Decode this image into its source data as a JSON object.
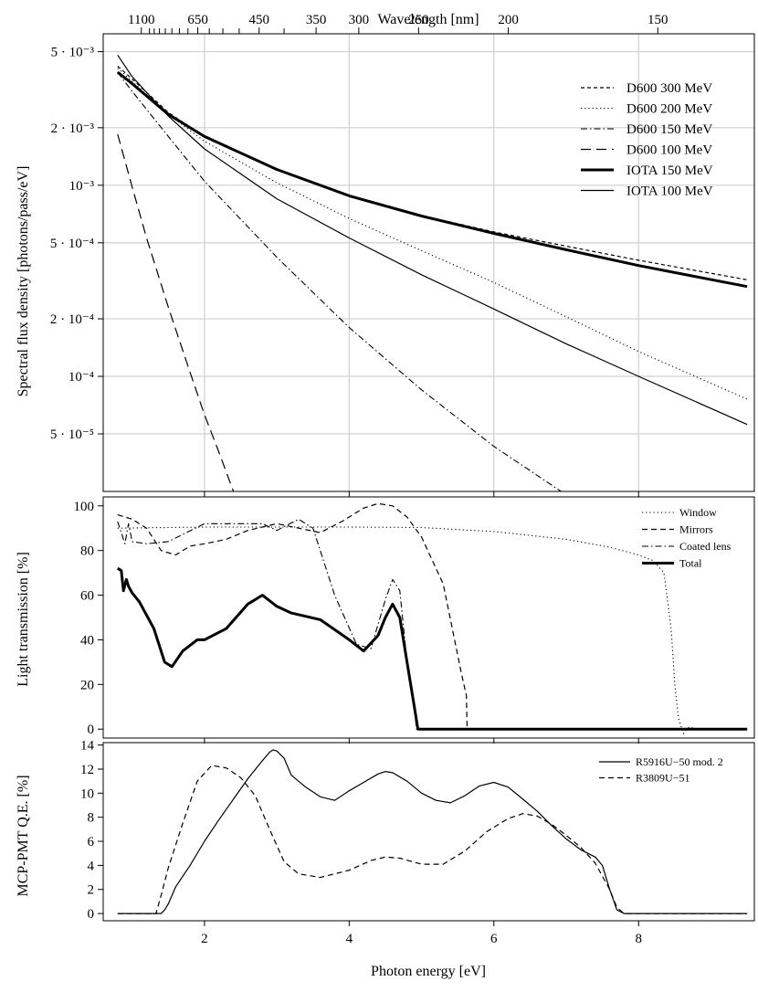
{
  "figure": {
    "top_axis_label": "Wavelength [nm]",
    "bottom_axis_label": "Photon energy [eV]"
  },
  "chart_data": [
    {
      "type": "line",
      "title": "",
      "xlabel": "Photon energy [eV]",
      "x2label": "Wavelength [nm]",
      "ylabel": "Spectral flux density [photons/pass/eV]",
      "yscale": "log",
      "xlim": [
        0.6,
        9.6
      ],
      "ylim": [
        2.5e-05,
        0.0062
      ],
      "grid": true,
      "legend_position": "top-right",
      "x_ticks": [
        2,
        4,
        6,
        8
      ],
      "y_ticks": [
        5e-05,
        0.0001,
        0.0002,
        0.0005,
        0.001,
        0.002,
        0.005
      ],
      "y_tick_labels": [
        "5 · 10⁻⁵",
        "10⁻⁴",
        "2 · 10⁻⁴",
        "5 · 10⁻⁴",
        "10⁻³",
        "2 · 10⁻³",
        "5 · 10⁻³"
      ],
      "wavelength_tick_labels": [
        {
          "nm": 1100,
          "label": "1100"
        },
        {
          "nm": 650,
          "label": "650"
        },
        {
          "nm": 450,
          "label": "450"
        },
        {
          "nm": 350,
          "label": "350"
        },
        {
          "nm": 300,
          "label": "300"
        },
        {
          "nm": 250,
          "label": "250"
        },
        {
          "nm": 200,
          "label": "200"
        },
        {
          "nm": 150,
          "label": "150"
        }
      ],
      "wavelength_minor_ticks": [
        1000,
        950,
        900,
        850,
        800,
        750,
        700,
        600,
        550,
        500,
        400
      ],
      "series": [
        {
          "name": "D600 300 MeV",
          "style": "dashed-short",
          "width": 1.2,
          "x": [
            0.8,
            1.0,
            1.5,
            2.0,
            3.0,
            4.0,
            5.0,
            6.0,
            7.0,
            8.0,
            9.5
          ],
          "y": [
            0.0042,
            0.0036,
            0.0024,
            0.0018,
            0.00121,
            0.00088,
            0.000695,
            0.00057,
            0.00048,
            0.000405,
            0.00032
          ]
        },
        {
          "name": "D600 200 MeV",
          "style": "dotted",
          "width": 1.1,
          "x": [
            0.8,
            1.0,
            1.5,
            2.0,
            3.0,
            4.0,
            5.0,
            6.0,
            7.0,
            8.0,
            9.5
          ],
          "y": [
            0.0041,
            0.0035,
            0.00235,
            0.0017,
            0.00103,
            0.00067,
            0.000455,
            0.00031,
            0.000205,
            0.000135,
            7.6e-05
          ]
        },
        {
          "name": "D600 150 MeV",
          "style": "dashdot",
          "width": 1.1,
          "x": [
            0.8,
            1.0,
            1.5,
            2.0,
            3.0,
            4.0,
            5.0,
            6.0,
            7.0
          ],
          "y": [
            0.0039,
            0.0031,
            0.0018,
            0.00105,
            0.00042,
            0.00018,
            8.5e-05,
            4.3e-05,
            2.4e-05
          ]
        },
        {
          "name": "D600 100 MeV",
          "style": "dashed-long",
          "width": 1.2,
          "x": [
            0.8,
            1.0,
            1.2,
            1.5,
            1.8,
            2.0,
            2.2,
            2.4
          ],
          "y": [
            0.00185,
            0.00098,
            0.00053,
            0.00023,
            0.000105,
            6.3e-05,
            4e-05,
            2.5e-05
          ]
        },
        {
          "name": "IOTA 150 MeV",
          "style": "solid",
          "width": 3.0,
          "x": [
            0.8,
            1.0,
            1.5,
            2.0,
            3.0,
            4.0,
            5.0,
            6.0,
            7.0,
            8.0,
            9.5
          ],
          "y": [
            0.0039,
            0.0034,
            0.00235,
            0.0018,
            0.00121,
            0.00088,
            0.00069,
            0.00056,
            0.00046,
            0.00038,
            0.000295
          ]
        },
        {
          "name": "IOTA 100 MeV",
          "style": "solid",
          "width": 1.2,
          "x": [
            0.8,
            1.0,
            1.5,
            2.0,
            3.0,
            4.0,
            5.0,
            6.0,
            7.0,
            8.0,
            9.5
          ],
          "y": [
            0.0048,
            0.0037,
            0.0023,
            0.00155,
            0.00085,
            0.00053,
            0.00034,
            0.000225,
            0.000148,
            0.0001,
            5.6e-05
          ]
        }
      ]
    },
    {
      "type": "line",
      "xlabel": "Photon energy [eV]",
      "ylabel": "Light transmission [%]",
      "xlim": [
        0.6,
        9.6
      ],
      "ylim": [
        -4,
        104
      ],
      "grid": false,
      "legend_position": "top-right",
      "y_ticks": [
        0,
        20,
        40,
        60,
        80,
        100
      ],
      "series": [
        {
          "name": "Window",
          "style": "dotted",
          "width": 1.1,
          "x": [
            0.8,
            2.0,
            4.0,
            5.0,
            6.0,
            7.0,
            7.6,
            8.0,
            8.2,
            8.35,
            8.45,
            8.5,
            8.55,
            8.62,
            8.7,
            8.8,
            9.5
          ],
          "y": [
            90,
            90.5,
            90.5,
            90.3,
            88.5,
            85,
            81.5,
            78,
            75.5,
            70,
            45,
            20,
            5,
            -2,
            1,
            0,
            0
          ]
        },
        {
          "name": "Mirrors",
          "style": "dashed",
          "width": 1.2,
          "x": [
            0.8,
            1.0,
            1.2,
            1.4,
            1.6,
            1.8,
            2.0,
            2.3,
            2.6,
            3.0,
            3.3,
            3.6,
            3.9,
            4.2,
            4.4,
            4.6,
            4.8,
            5.0,
            5.3,
            5.55,
            5.62,
            5.63,
            5.7,
            9.5
          ],
          "y": [
            96,
            94,
            90,
            80,
            78,
            82,
            83,
            85,
            89,
            92,
            90,
            88,
            93,
            99,
            101,
            100,
            95,
            86,
            65,
            25,
            15,
            0,
            0,
            0
          ]
        },
        {
          "name": "Coated lens",
          "style": "dashdot",
          "width": 1.1,
          "x": [
            0.8,
            0.85,
            0.9,
            0.95,
            1.0,
            1.2,
            1.5,
            2.0,
            2.5,
            2.8,
            3.0,
            3.3,
            3.5,
            3.8,
            4.1,
            4.3,
            4.5,
            4.6,
            4.7,
            4.8,
            4.9,
            4.93,
            5.0,
            9.5
          ],
          "y": [
            93,
            88,
            83,
            92,
            84,
            83,
            84,
            92,
            92,
            92,
            89,
            94,
            90,
            60,
            38,
            36,
            58,
            67,
            62,
            30,
            10,
            0,
            0,
            0
          ]
        },
        {
          "name": "Total",
          "style": "solid",
          "width": 3.0,
          "x": [
            0.8,
            0.85,
            0.88,
            0.92,
            0.95,
            1.0,
            1.1,
            1.3,
            1.45,
            1.55,
            1.7,
            1.9,
            2.0,
            2.3,
            2.6,
            2.8,
            3.0,
            3.2,
            3.6,
            4.0,
            4.2,
            4.4,
            4.5,
            4.6,
            4.7,
            4.8,
            4.9,
            4.95,
            5.0,
            9.5
          ],
          "y": [
            72,
            71,
            62,
            67,
            64,
            61,
            57,
            45,
            30,
            28,
            35,
            40,
            40,
            45,
            56,
            60,
            55,
            52,
            49,
            40,
            35,
            42,
            50,
            56,
            50,
            30,
            10,
            0,
            0,
            0
          ]
        }
      ]
    },
    {
      "type": "line",
      "xlabel": "Photon energy [eV]",
      "ylabel": "MCP-PMT Q.E. [%]",
      "xlim": [
        0.6,
        9.6
      ],
      "ylim": [
        -0.6,
        14.2
      ],
      "grid": false,
      "legend_position": "top-right",
      "x_ticks": [
        2,
        4,
        6,
        8
      ],
      "y_ticks": [
        0,
        2,
        4,
        6,
        8,
        10,
        12,
        14
      ],
      "series": [
        {
          "name": "R5916U−50 mod. 2",
          "style": "solid",
          "width": 1.2,
          "x": [
            0.8,
            1.4,
            1.45,
            1.5,
            1.6,
            1.8,
            2.0,
            2.2,
            2.4,
            2.6,
            2.8,
            2.9,
            2.95,
            3.0,
            3.1,
            3.2,
            3.4,
            3.6,
            3.8,
            4.0,
            4.2,
            4.4,
            4.5,
            4.6,
            4.8,
            5.0,
            5.2,
            5.4,
            5.6,
            5.8,
            6.0,
            6.2,
            6.4,
            6.6,
            6.8,
            7.0,
            7.2,
            7.4,
            7.5,
            7.6,
            7.7,
            7.8,
            9.5
          ],
          "y": [
            0,
            0,
            0.3,
            0.8,
            2.2,
            4.0,
            6.0,
            7.8,
            9.5,
            11.2,
            12.7,
            13.4,
            13.6,
            13.5,
            12.9,
            11.5,
            10.5,
            9.7,
            9.4,
            10.2,
            10.9,
            11.6,
            11.8,
            11.7,
            11.0,
            10.0,
            9.4,
            9.2,
            9.8,
            10.6,
            10.9,
            10.5,
            9.5,
            8.5,
            7.3,
            6.2,
            5.3,
            4.7,
            4.0,
            2.0,
            0.3,
            0,
            0
          ]
        },
        {
          "name": "R3809U−51",
          "style": "dashed",
          "width": 1.2,
          "x": [
            0.8,
            1.33,
            1.4,
            1.5,
            1.7,
            1.9,
            2.1,
            2.3,
            2.5,
            2.7,
            2.9,
            3.1,
            3.3,
            3.6,
            4.0,
            4.3,
            4.5,
            4.7,
            5.0,
            5.3,
            5.6,
            5.9,
            6.2,
            6.4,
            6.6,
            6.8,
            7.0,
            7.2,
            7.4,
            7.6,
            7.7,
            7.8,
            9.5
          ],
          "y": [
            0,
            0,
            1.5,
            3.8,
            7.5,
            11.0,
            12.3,
            12.1,
            11.3,
            9.8,
            7.0,
            4.3,
            3.3,
            3.0,
            3.6,
            4.4,
            4.7,
            4.6,
            4.1,
            4.1,
            5.2,
            6.8,
            7.9,
            8.3,
            8.1,
            7.4,
            6.5,
            5.5,
            4.2,
            2.0,
            0.5,
            0,
            0
          ]
        }
      ]
    }
  ]
}
